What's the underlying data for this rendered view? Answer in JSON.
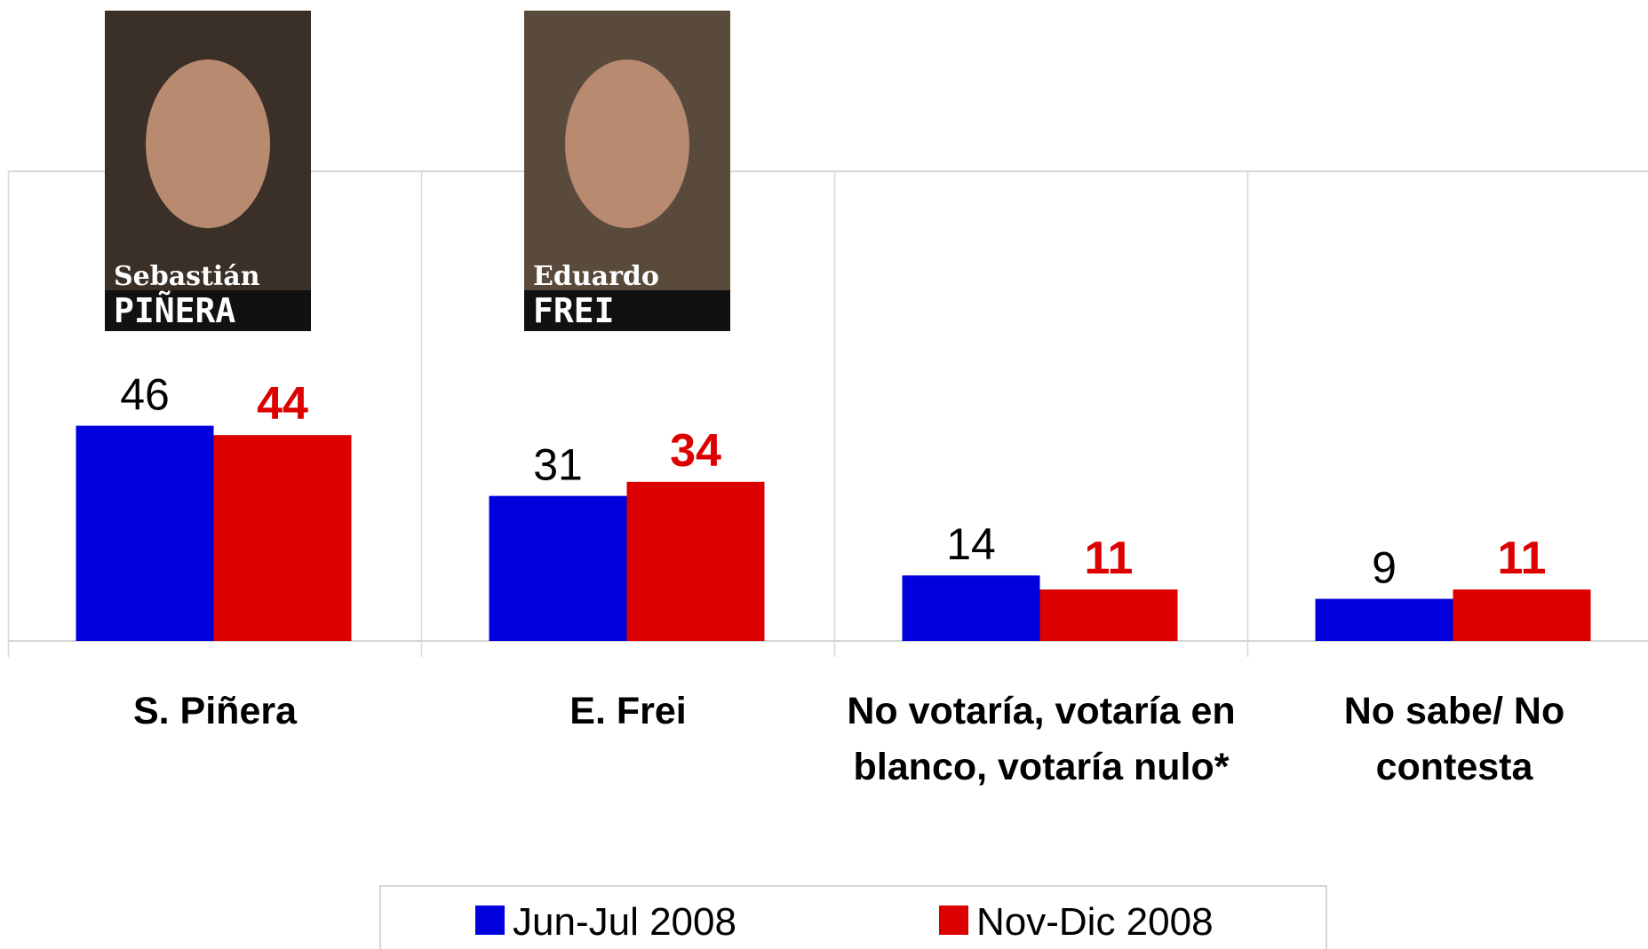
{
  "chart_data": {
    "type": "bar",
    "categories": [
      "S. Piñera",
      "E. Frei",
      "No votaría, votaría en blanco, votaría nulo*",
      "No sabe/ No contesta"
    ],
    "series": [
      {
        "name": "Jun-Jul 2008",
        "color": "#0000dd",
        "values": [
          46,
          31,
          14,
          9
        ]
      },
      {
        "name": "Nov-Dic 2008",
        "color": "#dd0000",
        "values": [
          44,
          34,
          11,
          11
        ]
      }
    ],
    "photo_captions": [
      [
        "Sebastián",
        "PIÑERA"
      ],
      [
        "Eduardo",
        "FREI"
      ]
    ]
  }
}
